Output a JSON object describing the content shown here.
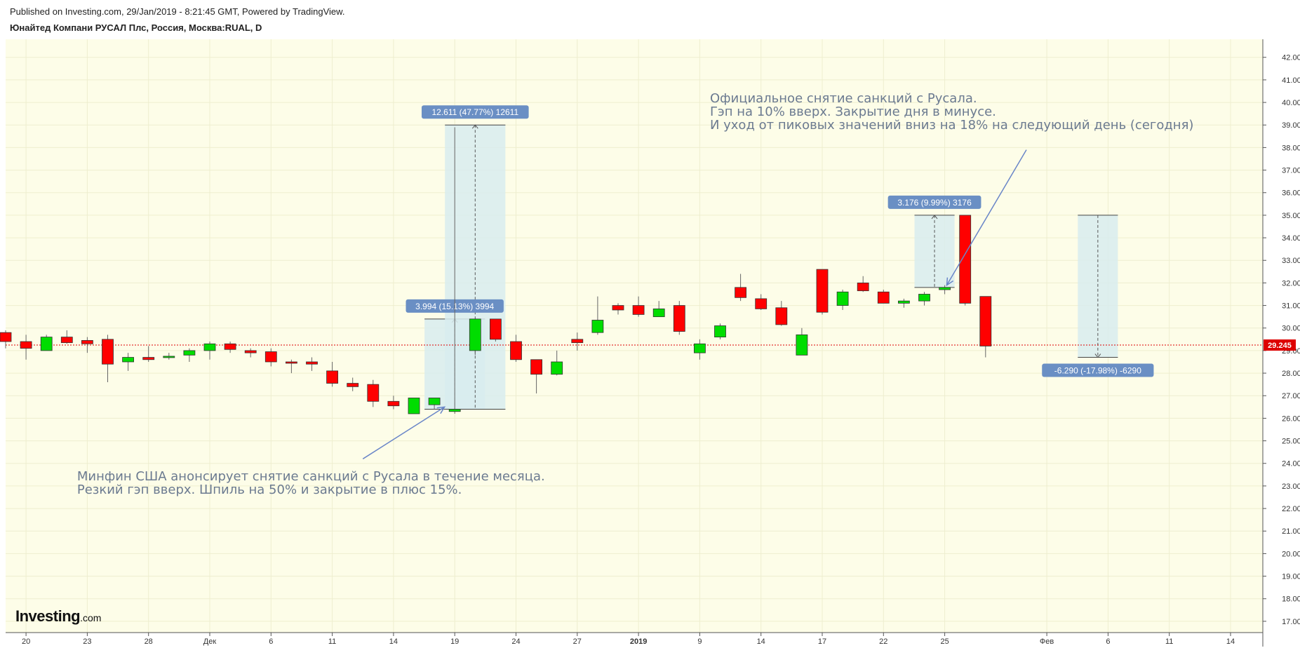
{
  "header": {
    "published": "Published on Investing.com, 29/Jan/2019 - 8:21:45 GMT, Powered by TradingView.",
    "symbol": "Юнайтед Компани РУСАЛ Плс, Россия, Москва:RUAL, D"
  },
  "logo": {
    "main": "Investing",
    "suffix": ".com"
  },
  "colors": {
    "background": "#fdfde8",
    "up": "#00dd00",
    "down": "#ff0000",
    "price_line": "#dd0000",
    "annotation_text": "#6b7a90",
    "label_bg": "#6a8fc4",
    "range_fill": "#d8ecee",
    "arrow": "#6a86c8"
  },
  "chart_data": {
    "type": "candlestick",
    "title": "",
    "xlabel": "",
    "ylabel": "",
    "ylim": [
      16.5,
      42.8
    ],
    "y_ticks": [
      "17.000",
      "18.000",
      "19.000",
      "20.000",
      "21.000",
      "22.000",
      "23.000",
      "24.000",
      "25.000",
      "26.000",
      "27.000",
      "28.000",
      "29.000",
      "30.000",
      "31.000",
      "32.000",
      "33.000",
      "34.000",
      "35.000",
      "36.000",
      "37.000",
      "38.000",
      "39.000",
      "40.000",
      "41.000",
      "42.000"
    ],
    "x_ticks": [
      {
        "label": "20",
        "i": 1
      },
      {
        "label": "23",
        "i": 4
      },
      {
        "label": "28",
        "i": 7
      },
      {
        "label": "Дек",
        "i": 10
      },
      {
        "label": "6",
        "i": 13
      },
      {
        "label": "11",
        "i": 16
      },
      {
        "label": "14",
        "i": 19
      },
      {
        "label": "19",
        "i": 22
      },
      {
        "label": "24",
        "i": 25
      },
      {
        "label": "27",
        "i": 28
      },
      {
        "label": "2019",
        "i": 31,
        "bold": true
      },
      {
        "label": "9",
        "i": 34
      },
      {
        "label": "14",
        "i": 37
      },
      {
        "label": "17",
        "i": 40
      },
      {
        "label": "22",
        "i": 43
      },
      {
        "label": "25",
        "i": 46
      },
      {
        "label": "Фев",
        "i": 51
      },
      {
        "label": "6",
        "i": 54
      },
      {
        "label": "11",
        "i": 57
      },
      {
        "label": "14",
        "i": 60
      }
    ],
    "last_price": "29.245",
    "last_price_value": 29.245,
    "candles": [
      {
        "i": 0,
        "o": 29.8,
        "h": 29.9,
        "l": 29.1,
        "c": 29.4
      },
      {
        "i": 1,
        "o": 29.4,
        "h": 29.7,
        "l": 28.6,
        "c": 29.1
      },
      {
        "i": 2,
        "o": 29.0,
        "h": 29.7,
        "l": 29.0,
        "c": 29.6
      },
      {
        "i": 3,
        "o": 29.6,
        "h": 29.9,
        "l": 29.3,
        "c": 29.35
      },
      {
        "i": 4,
        "o": 29.45,
        "h": 29.6,
        "l": 28.9,
        "c": 29.3
      },
      {
        "i": 5,
        "o": 29.5,
        "h": 29.7,
        "l": 27.6,
        "c": 28.4
      },
      {
        "i": 6,
        "o": 28.5,
        "h": 28.9,
        "l": 28.1,
        "c": 28.7
      },
      {
        "i": 7,
        "o": 28.7,
        "h": 29.2,
        "l": 28.5,
        "c": 28.6
      },
      {
        "i": 8,
        "o": 28.7,
        "h": 28.9,
        "l": 28.6,
        "c": 28.75
      },
      {
        "i": 9,
        "o": 28.8,
        "h": 29.1,
        "l": 28.5,
        "c": 29.0
      },
      {
        "i": 10,
        "o": 29.0,
        "h": 29.4,
        "l": 28.6,
        "c": 29.3
      },
      {
        "i": 11,
        "o": 29.3,
        "h": 29.4,
        "l": 28.9,
        "c": 29.05
      },
      {
        "i": 12,
        "o": 29.0,
        "h": 29.1,
        "l": 28.7,
        "c": 28.9
      },
      {
        "i": 13,
        "o": 28.95,
        "h": 29.1,
        "l": 28.3,
        "c": 28.5
      },
      {
        "i": 14,
        "o": 28.5,
        "h": 28.6,
        "l": 28.0,
        "c": 28.45
      },
      {
        "i": 15,
        "o": 28.5,
        "h": 28.7,
        "l": 28.1,
        "c": 28.4
      },
      {
        "i": 16,
        "o": 28.1,
        "h": 28.5,
        "l": 27.4,
        "c": 27.55
      },
      {
        "i": 17,
        "o": 27.55,
        "h": 27.8,
        "l": 27.2,
        "c": 27.4
      },
      {
        "i": 18,
        "o": 27.5,
        "h": 27.7,
        "l": 26.5,
        "c": 26.75
      },
      {
        "i": 19,
        "o": 26.75,
        "h": 27.0,
        "l": 26.4,
        "c": 26.55
      },
      {
        "i": 20,
        "o": 26.2,
        "h": 26.9,
        "l": 26.2,
        "c": 26.9
      },
      {
        "i": 21,
        "o": 26.6,
        "h": 26.9,
        "l": 26.4,
        "c": 26.9
      },
      {
        "i": 22,
        "o": 26.3,
        "h": 38.9,
        "l": 26.2,
        "c": 26.4
      },
      {
        "i": 23,
        "o": 29.0,
        "h": 30.4,
        "l": 28.8,
        "c": 30.4
      },
      {
        "i": 24,
        "o": 30.4,
        "h": 30.4,
        "l": 29.4,
        "c": 29.5
      },
      {
        "i": 25,
        "o": 29.4,
        "h": 29.7,
        "l": 28.5,
        "c": 28.6
      },
      {
        "i": 26,
        "o": 28.6,
        "h": 28.6,
        "l": 27.1,
        "c": 27.95
      },
      {
        "i": 27,
        "o": 27.95,
        "h": 29.0,
        "l": 27.9,
        "c": 28.5
      },
      {
        "i": 28,
        "o": 29.5,
        "h": 29.8,
        "l": 29.0,
        "c": 29.35
      },
      {
        "i": 29,
        "o": 29.8,
        "h": 31.4,
        "l": 29.7,
        "c": 30.35
      },
      {
        "i": 30,
        "o": 31.0,
        "h": 31.1,
        "l": 30.6,
        "c": 30.8
      },
      {
        "i": 31,
        "o": 31.0,
        "h": 31.4,
        "l": 30.5,
        "c": 30.6
      },
      {
        "i": 32,
        "o": 30.5,
        "h": 31.2,
        "l": 30.5,
        "c": 30.85
      },
      {
        "i": 33,
        "o": 31.0,
        "h": 31.2,
        "l": 29.7,
        "c": 29.85
      },
      {
        "i": 34,
        "o": 28.9,
        "h": 29.5,
        "l": 28.6,
        "c": 29.3
      },
      {
        "i": 35,
        "o": 29.6,
        "h": 30.2,
        "l": 29.5,
        "c": 30.1
      },
      {
        "i": 36,
        "o": 31.8,
        "h": 32.4,
        "l": 31.2,
        "c": 31.35
      },
      {
        "i": 37,
        "o": 31.3,
        "h": 31.5,
        "l": 30.8,
        "c": 30.85
      },
      {
        "i": 38,
        "o": 30.9,
        "h": 31.2,
        "l": 30.1,
        "c": 30.15
      },
      {
        "i": 39,
        "o": 28.8,
        "h": 30.0,
        "l": 28.8,
        "c": 29.7
      },
      {
        "i": 40,
        "o": 32.6,
        "h": 32.6,
        "l": 30.6,
        "c": 30.7
      },
      {
        "i": 41,
        "o": 31.0,
        "h": 31.7,
        "l": 30.8,
        "c": 31.6
      },
      {
        "i": 42,
        "o": 32.0,
        "h": 32.3,
        "l": 31.6,
        "c": 31.65
      },
      {
        "i": 43,
        "o": 31.6,
        "h": 31.7,
        "l": 31.1,
        "c": 31.1
      },
      {
        "i": 44,
        "o": 31.1,
        "h": 31.3,
        "l": 30.9,
        "c": 31.2
      },
      {
        "i": 45,
        "o": 31.2,
        "h": 31.6,
        "l": 31.0,
        "c": 31.5
      },
      {
        "i": 46,
        "o": 31.7,
        "h": 31.9,
        "l": 31.5,
        "c": 31.8
      },
      {
        "i": 47,
        "o": 35.0,
        "h": 35.0,
        "l": 31.0,
        "c": 31.1
      },
      {
        "i": 48,
        "o": 31.4,
        "h": 31.4,
        "l": 28.7,
        "c": 29.2
      }
    ],
    "measures": [
      {
        "i_from": 21,
        "i_to": 23,
        "y_from": 26.4,
        "y_to": 30.4,
        "label": "3.994 (15.13%) 3994",
        "label_pos": "top"
      },
      {
        "i_from": 22,
        "i_to": 24,
        "y_from": 26.4,
        "y_to": 39.0,
        "label": "12.611 (47.77%) 12611",
        "label_pos": "top"
      },
      {
        "i_from": 45,
        "i_to": 46,
        "y_from": 31.8,
        "y_to": 35.0,
        "label": "3.176 (9.99%) 3176",
        "label_pos": "top"
      },
      {
        "i_from": 53,
        "i_to": 54,
        "y_from": 35.0,
        "y_to": 28.7,
        "label": "-6.290 (-17.98%) -6290",
        "label_pos": "bottom"
      }
    ],
    "annotations": [
      {
        "lines": [
          "Минфин США анонсирует снятие санкций с Русала в течение месяца.",
          "Резкий гэп вверх. Шпиль на 50% и закрытие в плюс 15%."
        ],
        "i": 3.5,
        "y": 23.25,
        "arrow_from": [
          17.5,
          24.2
        ],
        "arrow_to": [
          21.5,
          26.5
        ]
      },
      {
        "lines": [
          "Официальное снятие санкций с Русала.",
          "Гэп на 10% вверх. Закрытие дня в минусе.",
          "И уход от пиковых значений вниз на 18% на следующий день (сегодня)"
        ],
        "i": 34.5,
        "y": 40.0,
        "arrow_from": [
          50,
          37.9
        ],
        "arrow_to": [
          46.1,
          31.9
        ]
      }
    ]
  }
}
